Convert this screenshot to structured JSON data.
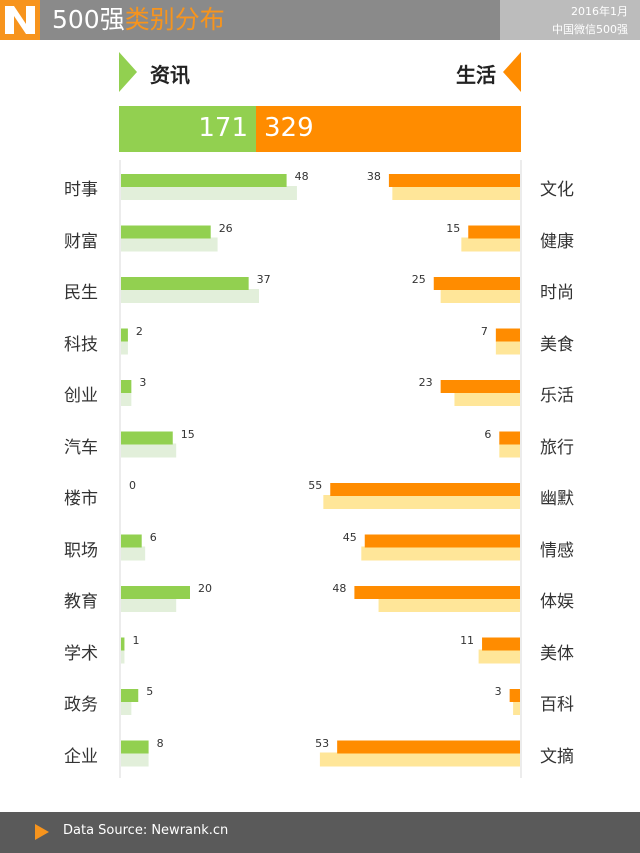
{
  "header": {
    "title_number": "500",
    "title_char": "强",
    "title_highlight": "类别分布",
    "date": "2016年1月",
    "source": "中国微信500强"
  },
  "categories": {
    "left": "资讯",
    "right": "生活"
  },
  "totals": {
    "left": 171,
    "right": 329,
    "left_text": "171",
    "right_text": "329"
  },
  "colors": {
    "green": "#92d050",
    "green_light": "#e2efda",
    "orange": "#ff8c00",
    "orange_light": "#ffe699",
    "header_bg": "#8a8a8a",
    "accent": "#f7941d"
  },
  "chart_data": {
    "type": "bar",
    "left_series": {
      "name": "资讯",
      "categories": [
        "时事",
        "财富",
        "民生",
        "科技",
        "创业",
        "汽车",
        "楼市",
        "职场",
        "教育",
        "学术",
        "政务",
        "企业"
      ],
      "values": [
        48,
        26,
        37,
        2,
        3,
        15,
        0,
        6,
        20,
        1,
        5,
        8
      ],
      "prev_values": [
        51,
        28,
        40,
        2,
        3,
        16,
        0,
        7,
        16,
        1,
        3,
        8
      ]
    },
    "right_series": {
      "name": "生活",
      "categories": [
        "文化",
        "健康",
        "时尚",
        "美食",
        "乐活",
        "旅行",
        "幽默",
        "情感",
        "体娱",
        "美体",
        "百科",
        "文摘"
      ],
      "values": [
        38,
        15,
        25,
        7,
        23,
        6,
        55,
        45,
        48,
        11,
        3,
        53
      ],
      "prev_values": [
        37,
        17,
        23,
        7,
        19,
        6,
        57,
        46,
        41,
        12,
        2,
        58
      ]
    },
    "xmax": 58
  },
  "footer": {
    "text": "Data Source: Newrank.cn"
  }
}
